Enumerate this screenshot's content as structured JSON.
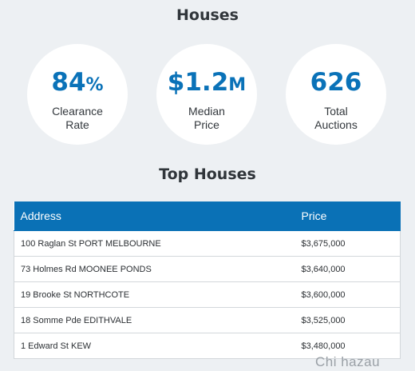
{
  "houses_title": "Houses",
  "stats": {
    "clearance": {
      "value": "84",
      "unit": "%",
      "label_line1": "Clearance",
      "label_line2": "Rate"
    },
    "median": {
      "value": "$1.2",
      "unit": "M",
      "label_line1": "Median",
      "label_line2": "Price"
    },
    "auctions": {
      "value": "626",
      "unit": "",
      "label_line1": "Total",
      "label_line2": "Auctions"
    }
  },
  "top_title": "Top Houses",
  "table": {
    "headers": {
      "address": "Address",
      "price": "Price"
    },
    "rows": [
      {
        "address": "100 Raglan St PORT MELBOURNE",
        "price": "$3,675,000"
      },
      {
        "address": "73 Holmes Rd MOONEE PONDS",
        "price": "$3,640,000"
      },
      {
        "address": "19 Brooke St NORTHCOTE",
        "price": "$3,600,000"
      },
      {
        "address": "18 Somme Pde EDITHVALE",
        "price": "$3,525,000"
      },
      {
        "address": "1 Edward St KEW",
        "price": "$3,480,000"
      }
    ]
  },
  "watermark": "Chi hazau",
  "colors": {
    "accent": "#0a72b8",
    "background": "#edf0f3"
  }
}
